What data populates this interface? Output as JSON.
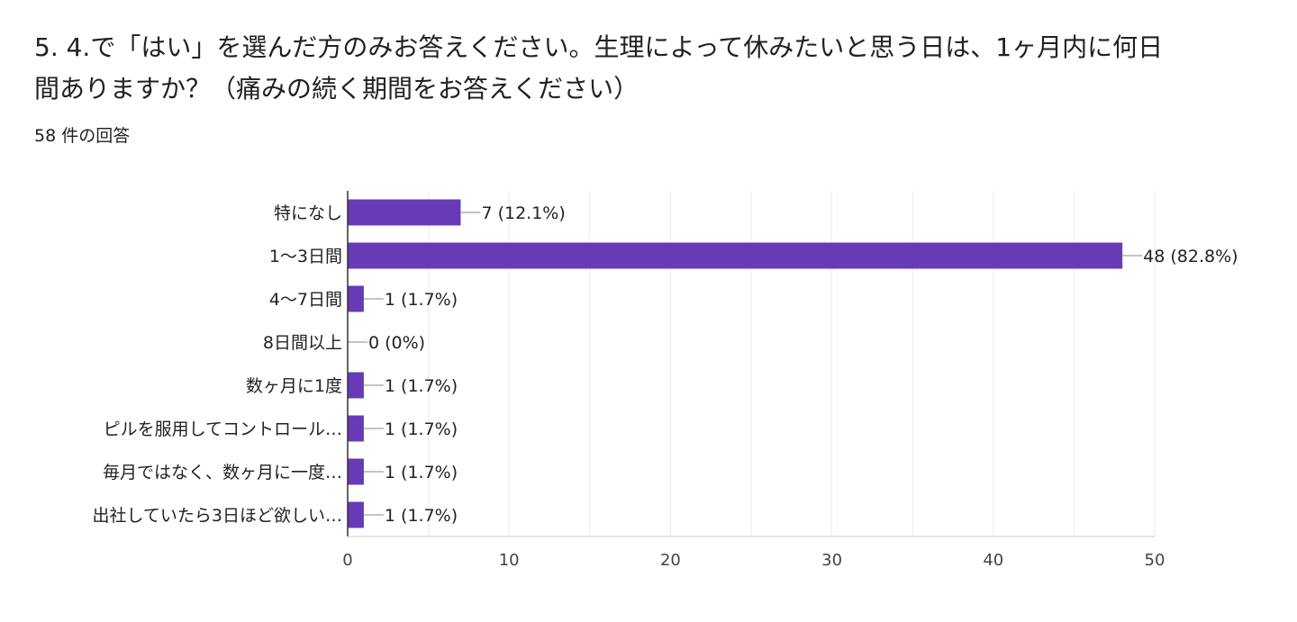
{
  "question": {
    "title": "5. 4.で「はい」を選んだ方のみお答えください。生理によって休みたいと思う日は、1ヶ月内に何日間ありますか？（痛みの続く期間をお答えください）",
    "response_count": "58 件の回答"
  },
  "colors": {
    "bar": "#673ab7",
    "grid": "#ebebeb",
    "axis": "#333333",
    "text": "#222222"
  },
  "chart_data": {
    "type": "bar",
    "orientation": "horizontal",
    "categories": [
      "特になし",
      "1〜3日間",
      "4〜7日間",
      "8日間以上",
      "数ヶ月に1度",
      "ピルを服用してコントロール…",
      "毎月ではなく、数ヶ月に一度…",
      "出社していたら3日ほど欲しい…"
    ],
    "values": [
      7,
      48,
      1,
      0,
      1,
      1,
      1,
      1
    ],
    "data_labels": [
      "7 (12.1%)",
      "48 (82.8%)",
      "1 (1.7%)",
      "0 (0%)",
      "1 (1.7%)",
      "1 (1.7%)",
      "1 (1.7%)",
      "1 (1.7%)"
    ],
    "xlim": [
      0,
      50
    ],
    "xticks": [
      0,
      10,
      20,
      30,
      40,
      50
    ],
    "grid": true
  }
}
